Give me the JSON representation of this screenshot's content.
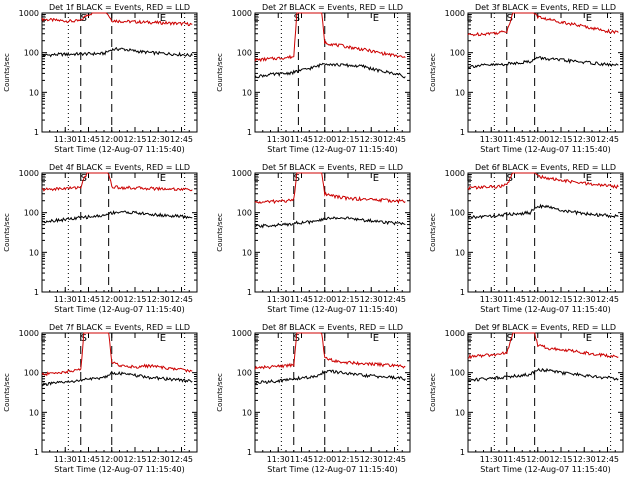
{
  "chart_data": [
    {
      "type": "line",
      "title": "Det 1f BLACK = Events, RED = LLD",
      "ylabel": "Counts/sec",
      "xlabel": "Start Time (12-Aug-07 11:15:40)",
      "y_scale": "log",
      "ylim": [
        1,
        1000
      ],
      "y_ticks": [
        "1",
        "10",
        "100",
        "1000"
      ],
      "x_ticks": [
        "11:30",
        "11:45",
        "12:00",
        "12:15",
        "12:30",
        "12:45"
      ],
      "markers": [
        "E",
        "S",
        "E"
      ],
      "series": [
        {
          "color": "#cc0000",
          "x": [
            "11:15",
            "11:25",
            "11:35",
            "11:40",
            "11:44",
            "11:48",
            "11:53",
            "11:57",
            "12:00",
            "12:06",
            "12:15",
            "12:25",
            "12:35",
            "12:45",
            "12:52"
          ],
          "y": [
            700,
            650,
            620,
            640,
            900,
            1000,
            1000,
            1000,
            650,
            620,
            600,
            580,
            560,
            540,
            520
          ]
        },
        {
          "color": "#000000",
          "x": [
            "11:15",
            "11:25",
            "11:35",
            "11:40",
            "11:55",
            "12:00",
            "12:06",
            "12:15",
            "12:25",
            "12:35",
            "12:45",
            "12:52"
          ],
          "y": [
            85,
            90,
            92,
            93,
            95,
            120,
            125,
            110,
            100,
            95,
            90,
            85
          ]
        }
      ]
    },
    {
      "type": "line",
      "title": "Det 2f BLACK = Events, RED = LLD",
      "ylabel": "Counts/sec",
      "xlabel": "Start Time (12-Aug-07 11:15:40)",
      "y_scale": "log",
      "ylim": [
        1,
        1000
      ],
      "y_ticks": [
        "1",
        "10",
        "100",
        "1000"
      ],
      "x_ticks": [
        "11:30",
        "11:45",
        "12:00",
        "12:15",
        "12:30",
        "12:45"
      ],
      "markers": [
        "E",
        "S",
        "E"
      ],
      "series": [
        {
          "color": "#cc0000",
          "x": [
            "11:15",
            "11:25",
            "11:35",
            "11:40",
            "11:42",
            "11:45",
            "11:55",
            "11:58",
            "12:00",
            "12:06",
            "12:15",
            "12:25",
            "12:35",
            "12:45",
            "12:52"
          ],
          "y": [
            65,
            70,
            75,
            80,
            1000,
            1000,
            1000,
            1000,
            180,
            160,
            140,
            120,
            100,
            85,
            75
          ]
        },
        {
          "color": "#000000",
          "x": [
            "11:15",
            "11:25",
            "11:35",
            "11:40",
            "11:55",
            "12:00",
            "12:06",
            "12:15",
            "12:25",
            "12:35",
            "12:45",
            "12:52"
          ],
          "y": [
            25,
            28,
            30,
            32,
            45,
            55,
            50,
            48,
            45,
            35,
            30,
            25
          ]
        }
      ]
    },
    {
      "type": "line",
      "title": "Det 3f BLACK = Events, RED = LLD",
      "ylabel": "Counts/sec",
      "xlabel": "Start Time (12-Aug-07 11:15:40)",
      "y_scale": "log",
      "ylim": [
        1,
        1000
      ],
      "y_ticks": [
        "1",
        "10",
        "100",
        "1000"
      ],
      "x_ticks": [
        "11:30",
        "11:45",
        "12:00",
        "12:15",
        "12:30",
        "12:45"
      ],
      "markers": [
        "E",
        "S",
        "E"
      ],
      "series": [
        {
          "color": "#cc0000",
          "x": [
            "11:15",
            "11:25",
            "11:35",
            "11:40",
            "11:44",
            "11:48",
            "11:55",
            "11:58",
            "12:00",
            "12:06",
            "12:15",
            "12:25",
            "12:35",
            "12:45",
            "12:52"
          ],
          "y": [
            280,
            300,
            320,
            350,
            1000,
            1000,
            1000,
            1000,
            800,
            700,
            600,
            500,
            420,
            350,
            320
          ]
        },
        {
          "color": "#000000",
          "x": [
            "11:15",
            "11:25",
            "11:35",
            "11:40",
            "11:55",
            "12:00",
            "12:06",
            "12:15",
            "12:25",
            "12:35",
            "12:45",
            "12:52"
          ],
          "y": [
            45,
            48,
            50,
            52,
            60,
            75,
            70,
            65,
            60,
            55,
            50,
            48
          ]
        }
      ]
    },
    {
      "type": "line",
      "title": "Det 4f BLACK = Events, RED = LLD",
      "ylabel": "Counts/sec",
      "xlabel": "Start Time (12-Aug-07 11:15:40)",
      "y_scale": "log",
      "ylim": [
        1,
        1000
      ],
      "y_ticks": [
        "1",
        "10",
        "100",
        "1000"
      ],
      "x_ticks": [
        "11:30",
        "11:45",
        "12:00",
        "12:15",
        "12:30",
        "12:45"
      ],
      "markers": [
        "E",
        "S",
        "E"
      ],
      "series": [
        {
          "color": "#cc0000",
          "x": [
            "11:15",
            "11:25",
            "11:35",
            "11:40",
            "11:44",
            "11:48",
            "11:55",
            "11:58",
            "12:00",
            "12:06",
            "12:15",
            "12:25",
            "12:35",
            "12:45",
            "12:52"
          ],
          "y": [
            380,
            400,
            420,
            450,
            1000,
            1000,
            1000,
            1000,
            450,
            430,
            420,
            410,
            400,
            390,
            380
          ]
        },
        {
          "color": "#000000",
          "x": [
            "11:15",
            "11:25",
            "11:35",
            "11:40",
            "11:55",
            "12:00",
            "12:06",
            "12:15",
            "12:25",
            "12:35",
            "12:45",
            "12:52"
          ],
          "y": [
            60,
            65,
            70,
            75,
            85,
            100,
            105,
            100,
            90,
            85,
            80,
            75
          ]
        }
      ]
    },
    {
      "type": "line",
      "title": "Det 5f BLACK = Events, RED = LLD",
      "ylabel": "Counts/sec",
      "xlabel": "Start Time (12-Aug-07 11:15:40)",
      "y_scale": "log",
      "ylim": [
        1,
        1000
      ],
      "y_ticks": [
        "1",
        "10",
        "100",
        "1000"
      ],
      "x_ticks": [
        "11:30",
        "11:45",
        "12:00",
        "12:15",
        "12:30",
        "12:45"
      ],
      "markers": [
        "E",
        "S",
        "E"
      ],
      "series": [
        {
          "color": "#cc0000",
          "x": [
            "11:15",
            "11:25",
            "11:35",
            "11:40",
            "11:42",
            "11:45",
            "11:55",
            "11:58",
            "12:00",
            "12:06",
            "12:15",
            "12:25",
            "12:35",
            "12:45",
            "12:52"
          ],
          "y": [
            180,
            190,
            200,
            210,
            1000,
            1000,
            1000,
            1000,
            300,
            260,
            230,
            220,
            210,
            200,
            190
          ]
        },
        {
          "color": "#000000",
          "x": [
            "11:15",
            "11:25",
            "11:35",
            "11:40",
            "11:55",
            "12:00",
            "12:06",
            "12:15",
            "12:25",
            "12:35",
            "12:45",
            "12:52"
          ],
          "y": [
            45,
            48,
            50,
            55,
            60,
            70,
            75,
            72,
            65,
            60,
            55,
            50
          ]
        }
      ]
    },
    {
      "type": "line",
      "title": "Det 6f BLACK = Events, RED = LLD",
      "ylabel": "Counts/sec",
      "xlabel": "Start Time (12-Aug-07 11:15:40)",
      "y_scale": "log",
      "ylim": [
        1,
        1000
      ],
      "y_ticks": [
        "1",
        "10",
        "100",
        "1000"
      ],
      "x_ticks": [
        "11:30",
        "11:45",
        "12:00",
        "12:15",
        "12:30",
        "12:45"
      ],
      "markers": [
        "E",
        "S",
        "E"
      ],
      "series": [
        {
          "color": "#cc0000",
          "x": [
            "11:15",
            "11:25",
            "11:35",
            "11:40",
            "11:44",
            "11:48",
            "11:55",
            "11:58",
            "12:00",
            "12:06",
            "12:15",
            "12:25",
            "12:35",
            "12:45",
            "12:52"
          ],
          "y": [
            420,
            440,
            460,
            500,
            1000,
            1000,
            1000,
            1000,
            850,
            750,
            650,
            580,
            520,
            480,
            450
          ]
        },
        {
          "color": "#000000",
          "x": [
            "11:15",
            "11:25",
            "11:35",
            "11:40",
            "11:55",
            "12:00",
            "12:06",
            "12:15",
            "12:25",
            "12:35",
            "12:45",
            "12:52"
          ],
          "y": [
            75,
            80,
            85,
            90,
            100,
            150,
            140,
            115,
            100,
            90,
            85,
            80
          ]
        }
      ]
    },
    {
      "type": "line",
      "title": "Det 7f BLACK = Events, RED = LLD",
      "ylabel": "Counts/sec",
      "xlabel": "Start Time (12-Aug-07 11:15:40)",
      "y_scale": "log",
      "ylim": [
        1,
        1000
      ],
      "y_ticks": [
        "1",
        "10",
        "100",
        "1000"
      ],
      "x_ticks": [
        "11:30",
        "11:45",
        "12:00",
        "12:15",
        "12:30",
        "12:45"
      ],
      "markers": [
        "E",
        "S",
        "E"
      ],
      "series": [
        {
          "color": "#cc0000",
          "x": [
            "11:15",
            "11:25",
            "11:35",
            "11:40",
            "11:42",
            "11:45",
            "11:55",
            "11:58",
            "12:00",
            "12:06",
            "12:15",
            "12:25",
            "12:35",
            "12:45",
            "12:52"
          ],
          "y": [
            90,
            100,
            110,
            120,
            1000,
            1000,
            1000,
            1000,
            180,
            150,
            140,
            150,
            130,
            120,
            110
          ]
        },
        {
          "color": "#000000",
          "x": [
            "11:15",
            "11:25",
            "11:35",
            "11:40",
            "11:55",
            "12:00",
            "12:06",
            "12:15",
            "12:25",
            "12:35",
            "12:45",
            "12:52"
          ],
          "y": [
            50,
            55,
            60,
            65,
            75,
            100,
            95,
            85,
            75,
            70,
            65,
            60
          ]
        }
      ]
    },
    {
      "type": "line",
      "title": "Det 8f BLACK = Events, RED = LLD",
      "ylabel": "Counts/sec",
      "xlabel": "Start Time (12-Aug-07 11:15:40)",
      "y_scale": "log",
      "ylim": [
        1,
        1000
      ],
      "y_ticks": [
        "1",
        "10",
        "100",
        "1000"
      ],
      "x_ticks": [
        "11:30",
        "11:45",
        "12:00",
        "12:15",
        "12:30",
        "12:45"
      ],
      "markers": [
        "E",
        "S",
        "E"
      ],
      "series": [
        {
          "color": "#cc0000",
          "x": [
            "11:15",
            "11:25",
            "11:35",
            "11:40",
            "11:42",
            "11:45",
            "11:55",
            "11:58",
            "12:00",
            "12:06",
            "12:15",
            "12:25",
            "12:35",
            "12:45",
            "12:52"
          ],
          "y": [
            130,
            140,
            150,
            160,
            1000,
            1000,
            1000,
            1000,
            250,
            200,
            180,
            170,
            160,
            150,
            140
          ]
        },
        {
          "color": "#000000",
          "x": [
            "11:15",
            "11:25",
            "11:35",
            "11:40",
            "11:55",
            "12:00",
            "12:06",
            "12:15",
            "12:25",
            "12:35",
            "12:45",
            "12:52"
          ],
          "y": [
            55,
            60,
            65,
            70,
            80,
            110,
            105,
            95,
            85,
            80,
            75,
            70
          ]
        }
      ]
    },
    {
      "type": "line",
      "title": "Det 9f BLACK = Events, RED = LLD",
      "ylabel": "Counts/sec",
      "xlabel": "Start Time (12-Aug-07 11:15:40)",
      "y_scale": "log",
      "ylim": [
        1,
        1000
      ],
      "y_ticks": [
        "1",
        "10",
        "100",
        "1000"
      ],
      "x_ticks": [
        "11:30",
        "11:45",
        "12:00",
        "12:15",
        "12:30",
        "12:45"
      ],
      "markers": [
        "E",
        "S",
        "E"
      ],
      "series": [
        {
          "color": "#cc0000",
          "x": [
            "11:15",
            "11:25",
            "11:35",
            "11:40",
            "11:44",
            "11:48",
            "11:55",
            "11:58",
            "12:00",
            "12:06",
            "12:15",
            "12:25",
            "12:35",
            "12:45",
            "12:52"
          ],
          "y": [
            250,
            270,
            290,
            320,
            1000,
            1000,
            1000,
            1000,
            500,
            420,
            380,
            340,
            300,
            270,
            250
          ]
        },
        {
          "color": "#000000",
          "x": [
            "11:15",
            "11:25",
            "11:35",
            "11:40",
            "11:55",
            "12:00",
            "12:06",
            "12:15",
            "12:25",
            "12:35",
            "12:45",
            "12:52"
          ],
          "y": [
            65,
            70,
            75,
            80,
            90,
            120,
            115,
            100,
            90,
            80,
            75,
            70
          ]
        }
      ]
    }
  ]
}
